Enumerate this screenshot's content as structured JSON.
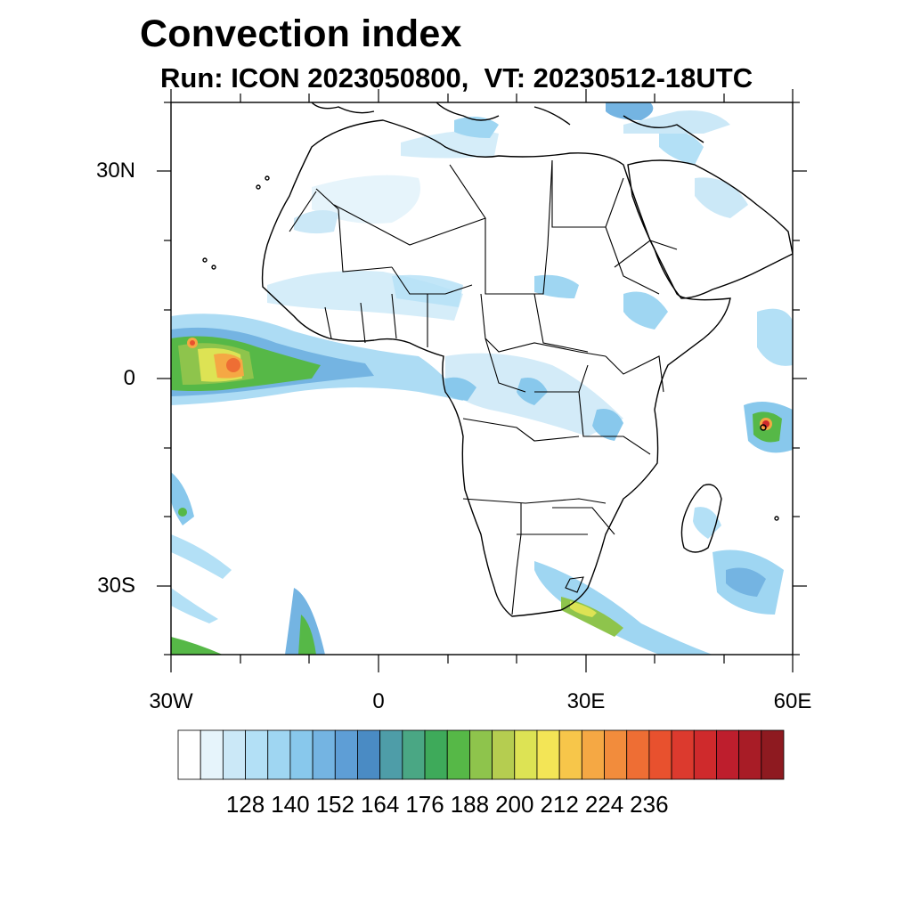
{
  "header": {
    "title": "Convection index",
    "subtitle": "Run: ICON 2023050800,  VT: 20230512-18UTC"
  },
  "map": {
    "extent": {
      "lon": [
        -30,
        60
      ],
      "lat": [
        -40,
        40
      ]
    },
    "lat_ticks": [
      {
        "label": "30N",
        "lat": 30
      },
      {
        "label": "0",
        "lat": 0
      },
      {
        "label": "30S",
        "lat": -30
      }
    ],
    "lon_ticks": [
      {
        "label": "30W",
        "lon": -30
      },
      {
        "label": "0",
        "lon": 0
      },
      {
        "label": "30E",
        "lon": 30
      },
      {
        "label": "60E",
        "lon": 60
      }
    ]
  },
  "colorbar": {
    "colors": [
      "#ffffff",
      "#e6f4fb",
      "#cbe8f7",
      "#b3e0f6",
      "#9fd6f2",
      "#88c8ec",
      "#74b4e2",
      "#5e9ed6",
      "#4a8bc4",
      "#4e9da8",
      "#4aa784",
      "#3eaa5a",
      "#56b847",
      "#8ec44c",
      "#b5cd50",
      "#dde354",
      "#f3e556",
      "#f7c64a",
      "#f5a844",
      "#f28c3c",
      "#ee6e34",
      "#e8512e",
      "#dc3a2e",
      "#cf2a2c",
      "#be1e2d",
      "#a81c26",
      "#8e1a20"
    ],
    "labels": [
      "128",
      "140",
      "152",
      "164",
      "176",
      "188",
      "200",
      "212",
      "224",
      "236"
    ]
  }
}
